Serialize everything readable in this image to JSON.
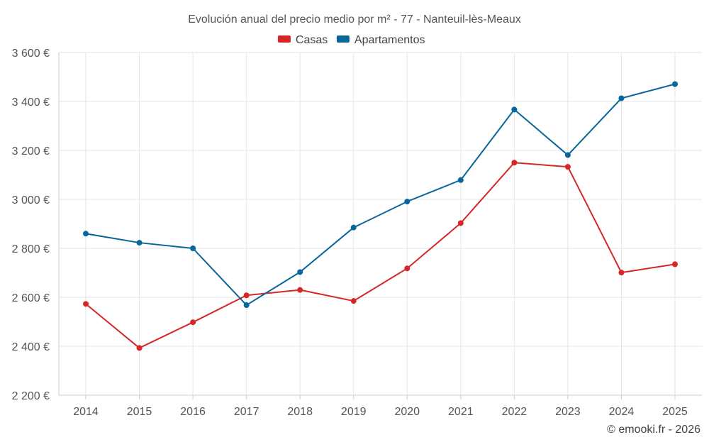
{
  "chart_data": {
    "type": "line",
    "title": "Evolución anual del precio medio por m² - 77 - Nanteuil-lès-Meaux",
    "categories": [
      "2014",
      "2015",
      "2016",
      "2017",
      "2018",
      "2019",
      "2020",
      "2021",
      "2022",
      "2023",
      "2024",
      "2025"
    ],
    "series": [
      {
        "name": "Casas",
        "color": "#d62728",
        "values": [
          2573,
          2393,
          2498,
          2608,
          2630,
          2585,
          2718,
          2903,
          3150,
          3133,
          2701,
          2735
        ]
      },
      {
        "name": "Apartamentos",
        "color": "#08669a",
        "values": [
          2860,
          2823,
          2800,
          2568,
          2703,
          2885,
          2991,
          3079,
          3367,
          3181,
          3413,
          3471
        ]
      }
    ],
    "ylim": [
      2200,
      3600
    ],
    "y_ticks": [
      2200,
      2400,
      2600,
      2800,
      3000,
      3200,
      3400,
      3600
    ],
    "y_tick_labels": [
      "2 200 €",
      "2 400 €",
      "2 600 €",
      "2 800 €",
      "3 000 €",
      "3 200 €",
      "3 400 €",
      "3 600 €"
    ],
    "xlabel": "",
    "ylabel": "",
    "grid": true,
    "legend_position": "top-center"
  },
  "credit": "© emooki.fr - 2026"
}
